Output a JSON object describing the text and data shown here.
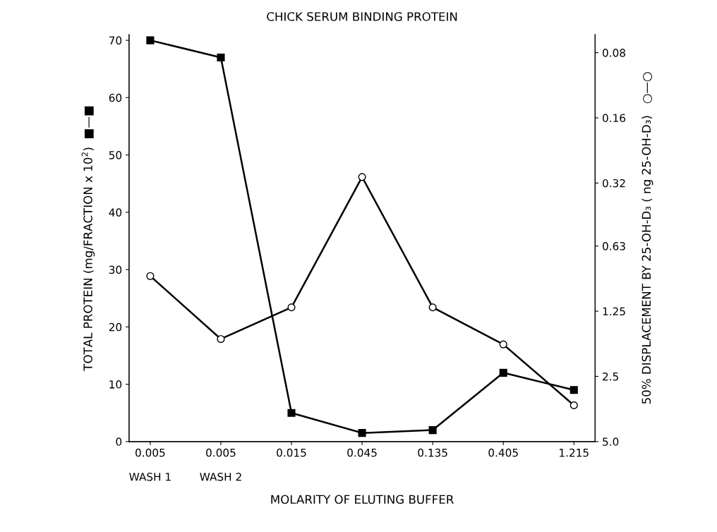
{
  "chart_data": {
    "type": "line",
    "title": "CHICK SERUM BINDING PROTEIN",
    "xlabel": "MOLARITY OF ELUTING BUFFER",
    "ylabel": "TOTAL PROTEIN (mg/FRACTION x 10$^{2}$)  ■—■",
    "y2label": "50% DISPLACEMENT BY 25-OH-D₃ ( ng 25-OH-D₃)   ○—○",
    "categories": [
      "0.005\n\nWASH 1",
      "0.005\n\nWASH 2",
      "0.015",
      "0.045",
      "0.135",
      "0.405",
      "1.215"
    ],
    "series": [
      {
        "color": "#000000",
        "marker": "square",
        "values": [
          70,
          67,
          5,
          1.5,
          2,
          12,
          9
        ]
      },
      {
        "color": "#000000",
        "marker": "circle",
        "axis": "y2",
        "values": [
          0.86,
          1.68,
          1.2,
          0.3,
          1.2,
          1.78,
          3.4
        ]
      }
    ],
    "ylim": [
      0,
      71
    ],
    "yticks": [
      0,
      10,
      20,
      30,
      40,
      50,
      60,
      70
    ],
    "log": "y2",
    "y2lim": [
      5.0,
      0.066
    ],
    "y2ticks": [
      {
        "value": 0.08,
        "label": "0.08"
      },
      {
        "value": 0.16,
        "label": "0.16"
      },
      {
        "value": 0.32,
        "label": "0.32"
      },
      {
        "value": 0.625,
        "label": "0.63"
      },
      {
        "value": 1.25,
        "label": "1.25"
      },
      {
        "value": 2.5,
        "label": "2.5"
      },
      {
        "value": 5.0,
        "label": "5.0"
      }
    ],
    "grid": false,
    "line_style": "solid"
  }
}
